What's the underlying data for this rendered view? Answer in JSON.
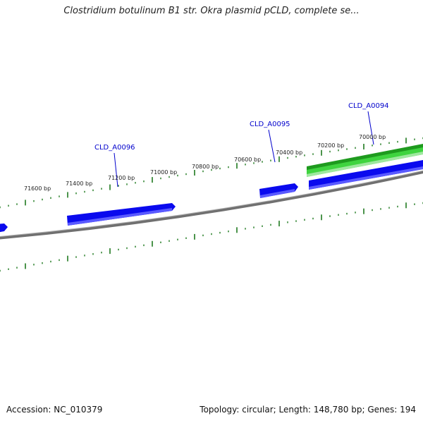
{
  "title": "Clostridium botulinum B1 str. Okra plasmid pCLD, complete se...",
  "footer": {
    "accession": "Accession: NC_010379",
    "topology": "Topology: circular; Length: 148,780 bp; Genes: 194"
  },
  "ruler": {
    "labels": [
      "71600 bp",
      "71400 bp",
      "71200 bp",
      "71000 bp",
      "70800 bp",
      "70600 bp",
      "70400 bp",
      "70200 bp",
      "70000 bp"
    ]
  },
  "genes": [
    {
      "id": "CLD_A0096"
    },
    {
      "id": "CLD_A0095"
    },
    {
      "id": "CLD_A0094"
    }
  ],
  "colors": {
    "cds": "#0a0aee",
    "gene": "#33cc33",
    "ticks": "#1f7a1f",
    "backbone": "#808080",
    "gene_label": "#0000cc"
  }
}
